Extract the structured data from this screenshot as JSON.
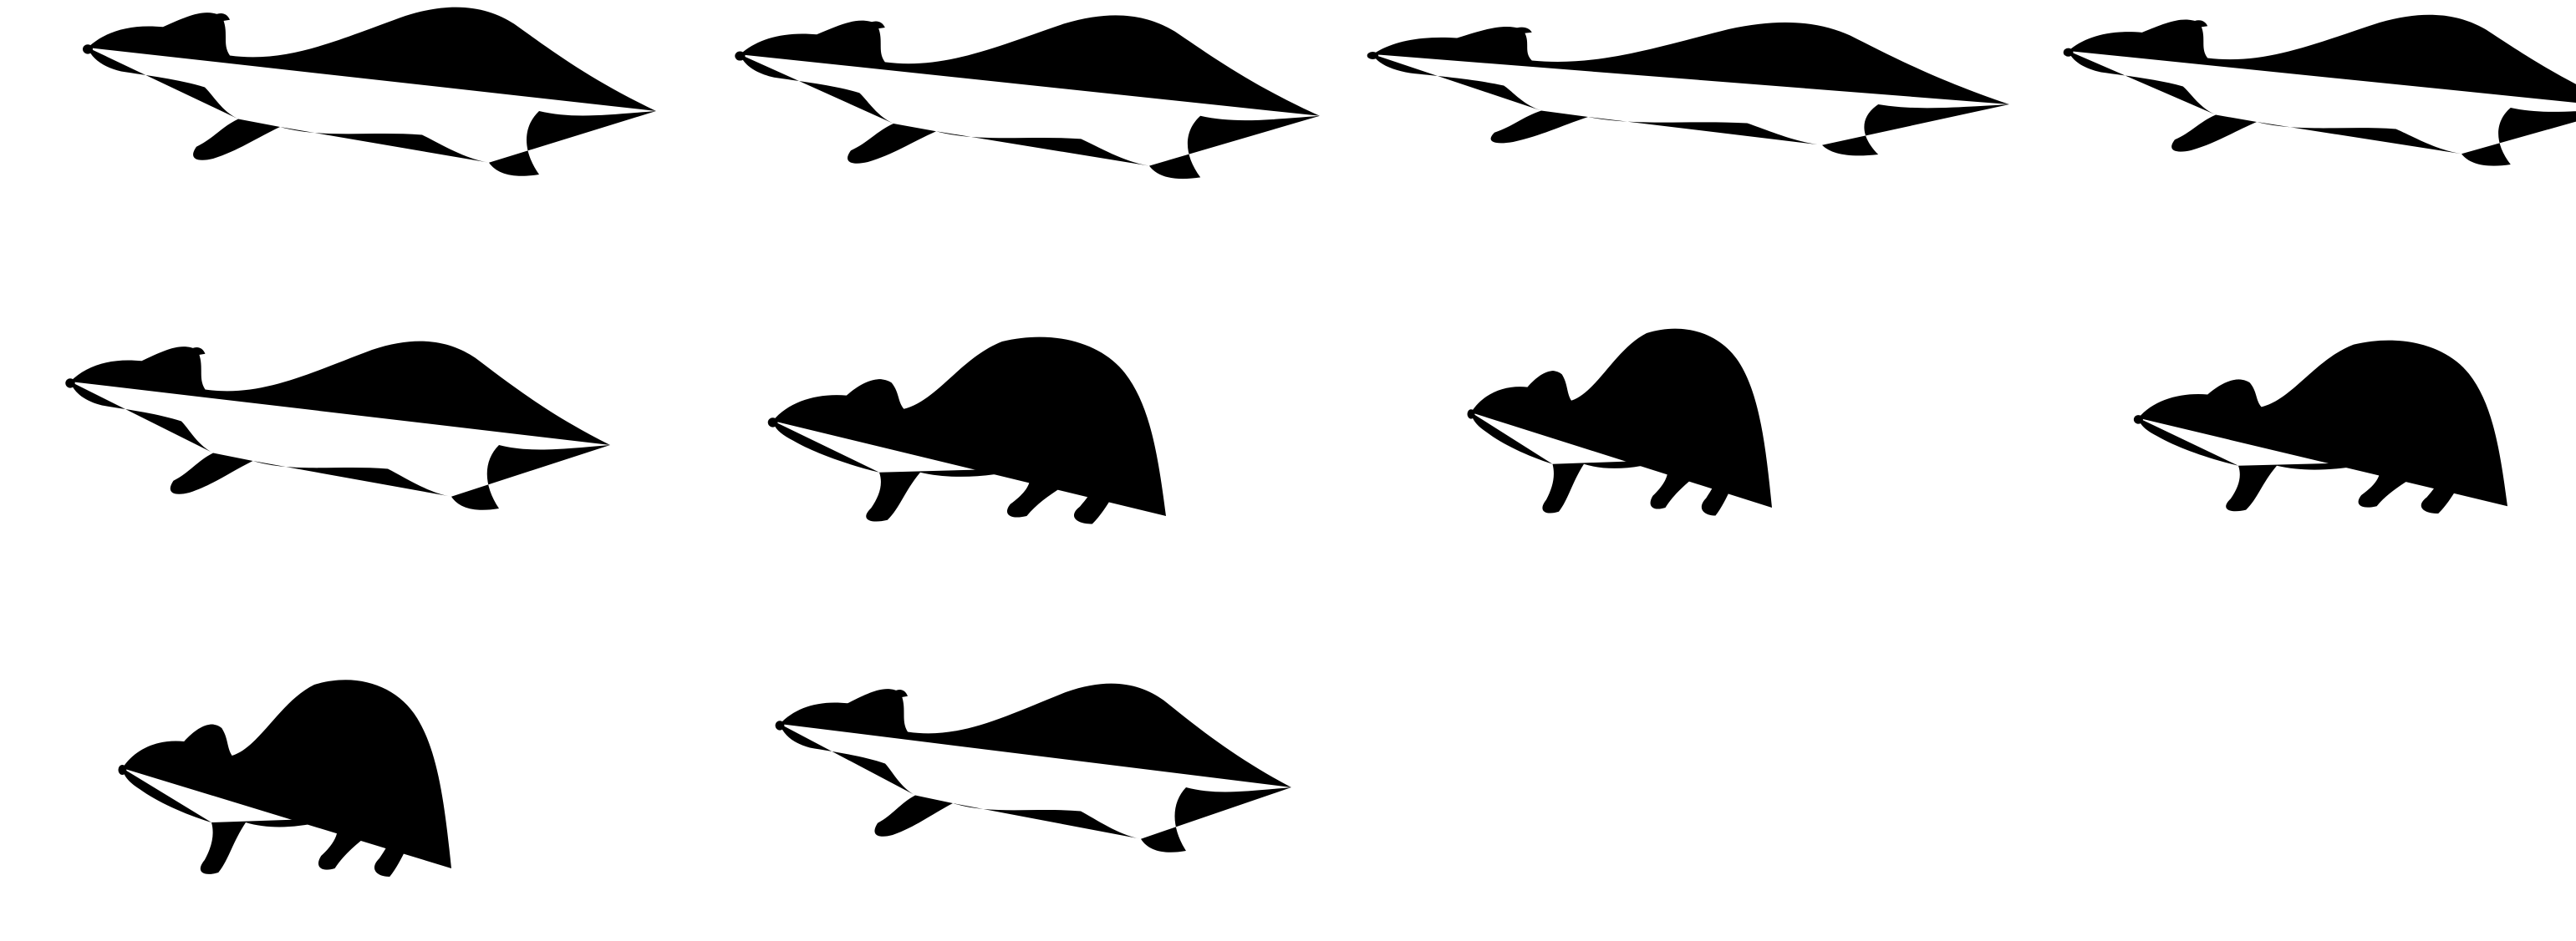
{
  "sheet": {
    "subject": "marten-run-cycle-sketch",
    "line_color": "#141414",
    "background_color": "#ffffff",
    "frames": [
      {
        "pose": "reach"
      },
      {
        "pose": "reach-extended"
      },
      {
        "pose": "full-stretch"
      },
      {
        "pose": "stretch-tail-up"
      },
      {
        "pose": "gather-tail-curled"
      },
      {
        "pose": "arch"
      },
      {
        "pose": "arch-high"
      },
      {
        "pose": "crouch-bunched"
      },
      {
        "pose": "push-off"
      },
      {
        "pose": "push-off-extended"
      }
    ]
  }
}
